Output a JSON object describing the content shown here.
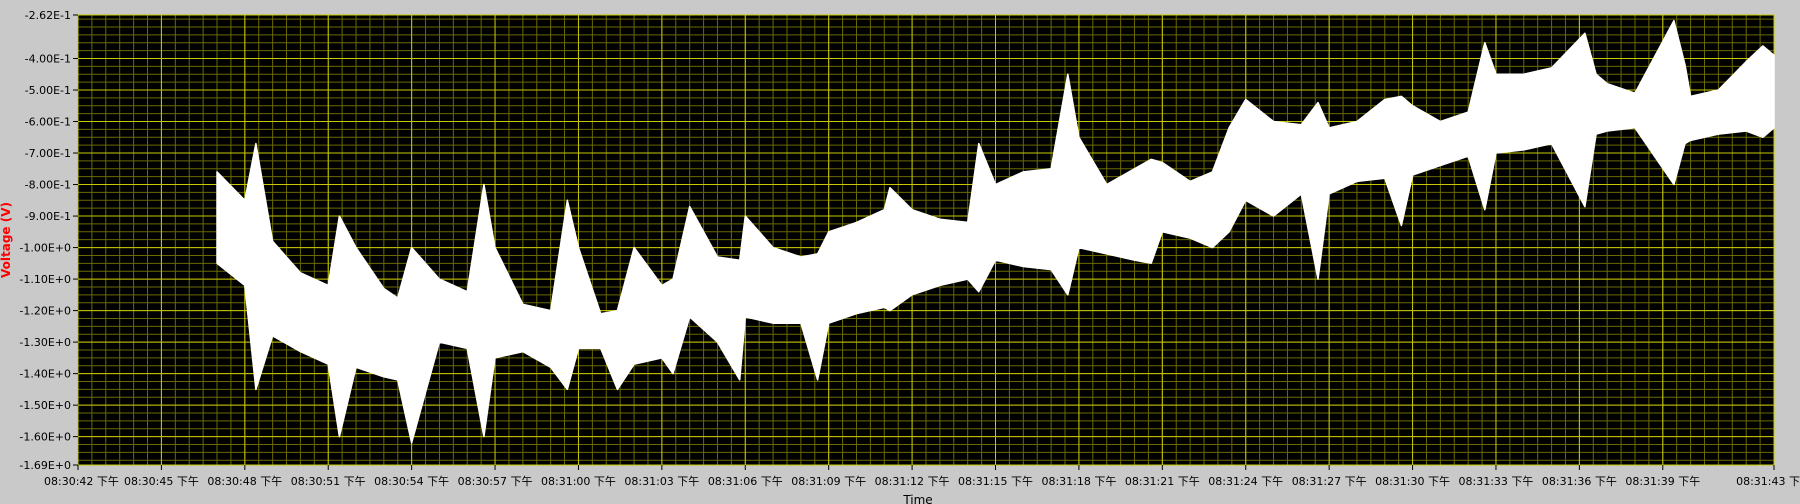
{
  "chart_data": {
    "type": "line",
    "xlabel": "Time",
    "ylabel": "Voltage (V)",
    "ylim": [
      -1.69,
      -0.262
    ],
    "y_ticks": [
      "-2.62E-1",
      "-4.00E-1",
      "-5.00E-1",
      "-6.00E-1",
      "-7.00E-1",
      "-8.00E-1",
      "-9.00E-1",
      "-1.00E+0",
      "-1.10E+0",
      "-1.20E+0",
      "-1.30E+0",
      "-1.40E+0",
      "-1.50E+0",
      "-1.60E+0",
      "-1.69E+0"
    ],
    "y_tick_values": [
      -0.262,
      -0.4,
      -0.5,
      -0.6,
      -0.7,
      -0.8,
      -0.9,
      -1.0,
      -1.1,
      -1.2,
      -1.3,
      -1.4,
      -1.5,
      -1.6,
      -1.69
    ],
    "x_ticks": [
      "08:30:42 下午",
      "08:30:45 下午",
      "08:30:48 下午",
      "08:30:51 下午",
      "08:30:54 下午",
      "08:30:57 下午",
      "08:31:00 下午",
      "08:31:03 下午",
      "08:31:06 下午",
      "08:31:09 下午",
      "08:31:12 下午",
      "08:31:15 下午",
      "08:31:18 下午",
      "08:31:21 下午",
      "08:31:24 下午",
      "08:31:27 下午",
      "08:31:30 下午",
      "08:31:33 下午",
      "08:31:36 下午",
      "08:31:39 下午",
      "08:31:43 下"
    ],
    "x_tick_seconds": [
      0,
      3,
      6,
      9,
      12,
      15,
      18,
      21,
      24,
      27,
      30,
      33,
      36,
      39,
      42,
      45,
      48,
      51,
      54,
      57,
      61
    ],
    "grid": true,
    "colors": {
      "plot_bg": "#000000",
      "grid_major": "#c8c800",
      "grid_minor": "#6a6a00",
      "trace": "#ffffff",
      "ylabel": "#ff0000",
      "frame_bg": "#c9c9c9"
    },
    "series": [
      {
        "t": [
          5.0,
          6.0,
          6.4,
          7.0,
          8.0,
          9.0,
          9.4,
          10.0,
          11.0,
          11.5,
          12.0,
          13.0,
          14.0,
          14.6,
          15.0,
          16.0,
          17.0,
          17.6,
          18.0,
          18.8,
          19.4,
          20.0,
          21.0,
          21.4,
          22.0,
          23.0,
          23.8,
          24.0,
          25.0,
          26.0,
          26.6,
          27.0,
          28.0,
          29.0,
          29.2,
          30.0,
          31.0,
          32.0,
          32.4,
          33.0,
          34.0,
          35.0,
          35.6,
          36.0,
          37.0,
          38.0,
          38.6,
          39.0,
          40.0,
          40.8,
          41.4,
          42.0,
          43.0,
          44.0,
          44.6,
          45.0,
          46.0,
          47.0,
          47.6,
          48.0,
          49.0,
          50.0,
          50.6,
          51.0,
          52.0,
          53.0,
          54.2,
          54.6,
          55.0,
          56.0,
          57.4,
          57.8,
          58.0,
          59.0,
          60.0,
          60.6,
          61.0
        ],
        "high": [
          -0.76,
          -0.85,
          -0.67,
          -0.98,
          -1.08,
          -1.12,
          -0.9,
          -1.0,
          -1.13,
          -1.16,
          -1.0,
          -1.1,
          -1.14,
          -0.8,
          -1.0,
          -1.18,
          -1.2,
          -0.85,
          -1.0,
          -1.21,
          -1.2,
          -1.0,
          -1.12,
          -1.1,
          -0.87,
          -1.03,
          -1.04,
          -0.9,
          -1.0,
          -1.03,
          -1.02,
          -0.95,
          -0.92,
          -0.88,
          -0.81,
          -0.88,
          -0.91,
          -0.92,
          -0.67,
          -0.8,
          -0.76,
          -0.75,
          -0.45,
          -0.65,
          -0.8,
          -0.75,
          -0.72,
          -0.73,
          -0.79,
          -0.76,
          -0.62,
          -0.53,
          -0.6,
          -0.61,
          -0.54,
          -0.62,
          -0.6,
          -0.53,
          -0.52,
          -0.55,
          -0.6,
          -0.57,
          -0.35,
          -0.45,
          -0.45,
          -0.43,
          -0.32,
          -0.45,
          -0.48,
          -0.51,
          -0.28,
          -0.42,
          -0.52,
          -0.5,
          -0.41,
          -0.36,
          -0.39
        ],
        "low": [
          -1.05,
          -1.12,
          -1.45,
          -1.28,
          -1.33,
          -1.37,
          -1.6,
          -1.38,
          -1.41,
          -1.42,
          -1.62,
          -1.3,
          -1.32,
          -1.6,
          -1.35,
          -1.33,
          -1.38,
          -1.45,
          -1.32,
          -1.32,
          -1.45,
          -1.37,
          -1.35,
          -1.4,
          -1.22,
          -1.3,
          -1.42,
          -1.22,
          -1.24,
          -1.24,
          -1.42,
          -1.24,
          -1.21,
          -1.19,
          -1.2,
          -1.15,
          -1.12,
          -1.1,
          -1.14,
          -1.04,
          -1.06,
          -1.07,
          -1.15,
          -1.0,
          -1.02,
          -1.04,
          -1.05,
          -0.95,
          -0.97,
          -1.0,
          -0.95,
          -0.85,
          -0.9,
          -0.83,
          -1.1,
          -0.83,
          -0.79,
          -0.78,
          -0.93,
          -0.77,
          -0.74,
          -0.71,
          -0.88,
          -0.7,
          -0.69,
          -0.67,
          -0.87,
          -0.64,
          -0.63,
          -0.62,
          -0.8,
          -0.67,
          -0.66,
          -0.64,
          -0.63,
          -0.65,
          -0.62
        ]
      }
    ]
  }
}
